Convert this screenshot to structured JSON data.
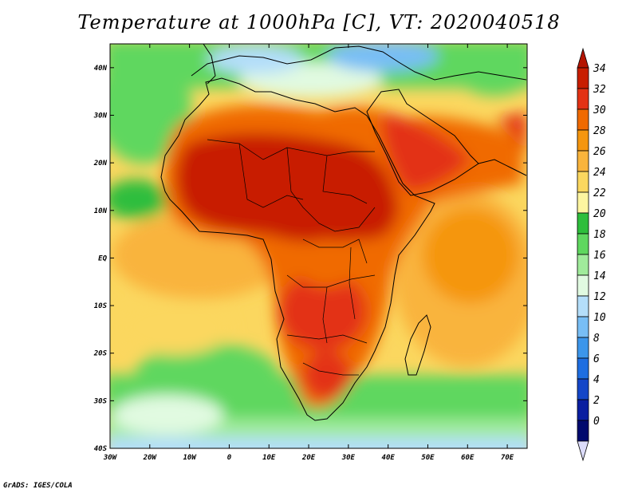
{
  "title": "Temperature at 1000hPa [C], VT: 2020040518",
  "credit": "GrADS: IGES/COLA",
  "map": {
    "lon_range": [
      -30,
      75
    ],
    "lat_range": [
      -40,
      45
    ],
    "x_ticks": [
      {
        "lon": -30,
        "label": "30W"
      },
      {
        "lon": -20,
        "label": "20W"
      },
      {
        "lon": -10,
        "label": "10W"
      },
      {
        "lon": 0,
        "label": "0"
      },
      {
        "lon": 10,
        "label": "10E"
      },
      {
        "lon": 20,
        "label": "20E"
      },
      {
        "lon": 30,
        "label": "30E"
      },
      {
        "lon": 40,
        "label": "40E"
      },
      {
        "lon": 50,
        "label": "50E"
      },
      {
        "lon": 60,
        "label": "60E"
      },
      {
        "lon": 70,
        "label": "70E"
      }
    ],
    "y_ticks": [
      {
        "lat": 40,
        "label": "40N"
      },
      {
        "lat": 30,
        "label": "30N"
      },
      {
        "lat": 20,
        "label": "20N"
      },
      {
        "lat": 10,
        "label": "10N"
      },
      {
        "lat": 0,
        "label": "EQ"
      },
      {
        "lat": -10,
        "label": "10S"
      },
      {
        "lat": -20,
        "label": "20S"
      },
      {
        "lat": -30,
        "label": "30S"
      },
      {
        "lat": -40,
        "label": "40S"
      }
    ]
  },
  "colorbar": {
    "levels": [
      {
        "label": "34",
        "color": "#c81e00"
      },
      {
        "label": "32",
        "color": "#e33214"
      },
      {
        "label": "30",
        "color": "#f06a00"
      },
      {
        "label": "28",
        "color": "#f5960f"
      },
      {
        "label": "26",
        "color": "#f9b43c"
      },
      {
        "label": "24",
        "color": "#fbd75f"
      },
      {
        "label": "22",
        "color": "#fdf5a0"
      },
      {
        "label": "20",
        "color": "#2ebe3c"
      },
      {
        "label": "18",
        "color": "#5fd75f"
      },
      {
        "label": "16",
        "color": "#a0eb9b"
      },
      {
        "label": "14",
        "color": "#e1fae1"
      },
      {
        "label": "12",
        "color": "#b4defa"
      },
      {
        "label": "10",
        "color": "#78bef5"
      },
      {
        "label": "8",
        "color": "#3c96eb"
      },
      {
        "label": "6",
        "color": "#1e6ee1"
      },
      {
        "label": "4",
        "color": "#1446c8"
      },
      {
        "label": "2",
        "color": "#0a1ea0"
      },
      {
        "label": "0",
        "color": "#000a6e"
      }
    ],
    "top_color": "#b41400",
    "bottom_color": "#dcdcfa"
  }
}
